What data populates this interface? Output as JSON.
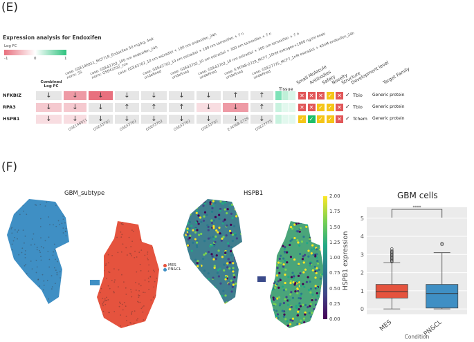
{
  "panel_e": {
    "letter": "(E)",
    "title": "Expression analysis for Endoxifen",
    "legend_title": "Log FC",
    "legend_ticks": [
      "-1",
      "0",
      "1"
    ],
    "combined_header": "Combined\nLog FC",
    "genes": [
      "NFKBIZ",
      "RPA3",
      "HSPB1"
    ],
    "case_headers": [
      "case: GSE146911_MCF7LR_Endoxifen 50 mg/kg, 4wk\nnorm: SS",
      "case: GSE43702_100 nm endoxifen_24h\nnorm: GSE43702_con",
      "case: GSE43702_10 nm estradiol + 100 nm endoxifen_24h",
      "case: GSE43702_10 nm estradiol + 100 nm tamoxifen + 7 n\nundefined",
      "case: GSE43702_10 nm estradiol + 300 nm tamoxifen + 7 n\nundefined",
      "case: GSE43702_10 nm estradiol + 300 nm tamoxifen + 7 n\nundefined",
      "case: E-MTAB-2729_MCF7_10nM estrogen+1000 ng/ml endo\nundefined",
      "case: GSE27775_MCF7_1nM estradiol + 40nM endoxifen_24h\nundefined"
    ],
    "bottom_labels": [
      "GSE146911",
      "GSE43702",
      "GSE43702",
      "GSE43702",
      "GSE43702",
      "GSE43702",
      "E-MTAB-2729",
      "GSE27775"
    ],
    "right_headers": [
      "Tissue",
      "Small Molecule",
      "Antibodies",
      "Safety",
      "Novelty",
      "Structure",
      "Development level",
      "Target Family"
    ],
    "rows": [
      {
        "arrows": [
          "↓",
          "↓",
          "↓",
          "↓",
          "↓",
          "↓",
          "↓",
          "↑",
          "↑"
        ],
        "badges": [
          "✕",
          "✕",
          "✕",
          "✓",
          "✕"
        ],
        "dev": "Tbio",
        "family": "Generic protein"
      },
      {
        "arrows": [
          "↓",
          "↓",
          "↓",
          "↑",
          "↑",
          "↑",
          "↓",
          "↓",
          "↑"
        ],
        "badges": [
          "✕",
          "✕",
          "✓",
          "✓",
          "✕"
        ],
        "dev": "Tbio",
        "family": "Generic protein"
      },
      {
        "arrows": [
          "↓",
          "↓",
          "↓",
          "↓",
          "↓",
          "↓",
          "↓",
          "↓",
          "↓"
        ],
        "badges": [
          "✓",
          "✓",
          "✓",
          "✓",
          "✕"
        ],
        "dev": "Tchem",
        "family": "Generic protein"
      }
    ],
    "check_glyph": "✓",
    "colors": {
      "down": "#e8707e",
      "up": "#2ec27e",
      "neutral": "#e6e6e6",
      "yes": "#f5c518",
      "no": "#e15759",
      "ok_green": "#1fbf6a"
    }
  },
  "panel_f": {
    "letter": "(F)",
    "umap1_title": "GBM_subtype",
    "umap2_title": "HSPB1",
    "umap_legend": [
      {
        "label": "MES",
        "color": "#e5533e"
      },
      {
        "label": "PN&CL",
        "color": "#3f8fc4"
      }
    ],
    "colorbar_ticks": [
      "2.00",
      "1.75",
      "1.50",
      "1.25",
      "1.00",
      "0.75",
      "0.50",
      "0.25",
      "0.00"
    ],
    "boxplot_title": "GBM cells",
    "significance": "****"
  },
  "chart_data": [
    {
      "type": "box",
      "title": "GBM cells",
      "xlabel": "Condition",
      "ylabel": "HSPB1 expression",
      "categories": [
        "MES",
        "PN&CL"
      ],
      "ylim": [
        -0.3,
        5.6
      ],
      "yticks": [
        0,
        1,
        2,
        3,
        4,
        5
      ],
      "series": [
        {
          "name": "MES",
          "color": "#e5533e",
          "min": 0.0,
          "q1": 0.6,
          "median": 0.95,
          "q3": 1.35,
          "max": 2.55,
          "outliers": [
            2.6,
            2.65,
            2.7,
            2.75,
            2.8,
            2.85,
            2.9,
            2.95,
            3.0,
            3.05,
            3.1,
            3.15,
            3.2,
            3.3
          ]
        },
        {
          "name": "PN&CL",
          "color": "#3f8fc4",
          "min": 0.0,
          "q1": 0.05,
          "median": 0.85,
          "q3": 1.35,
          "max": 3.1,
          "outliers": [
            3.55,
            3.6
          ]
        }
      ]
    }
  ]
}
